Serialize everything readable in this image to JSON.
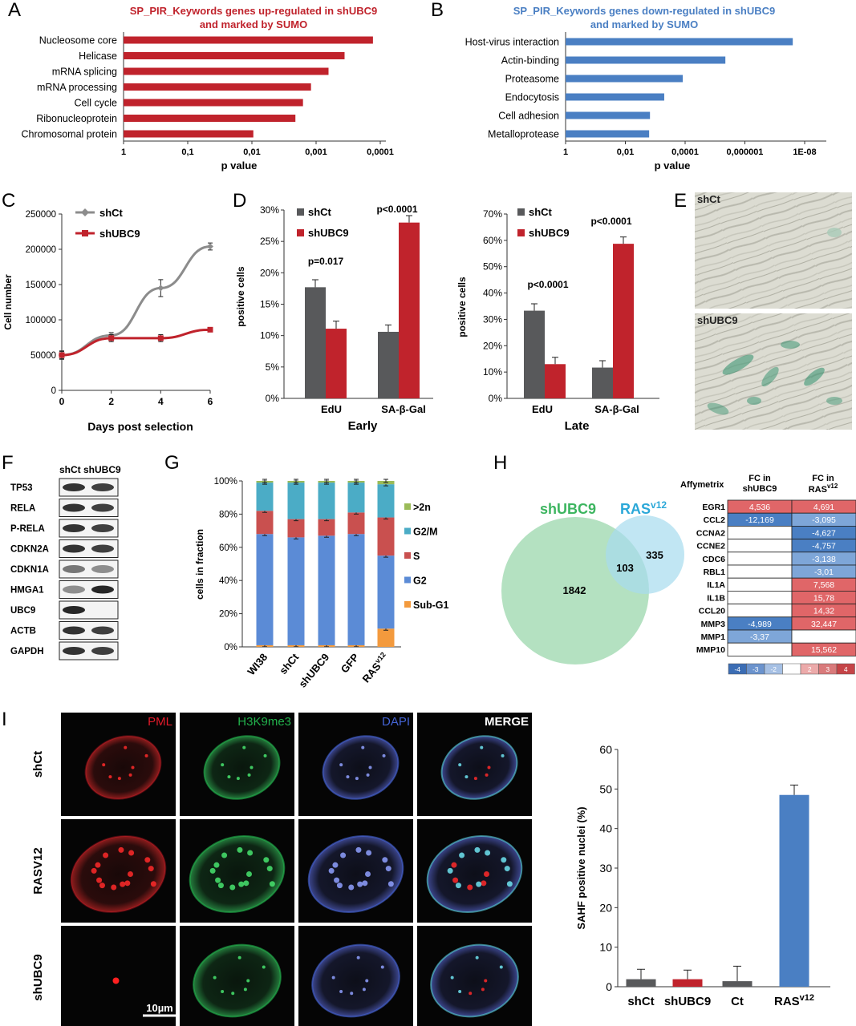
{
  "panels": {
    "A": {
      "letter": "A",
      "title_line1": "SP_PIR_Keywords genes up-regulated in shUBC9",
      "title_line2": "and marked by SUMO",
      "xlabel": "p value",
      "ticks": [
        "1",
        "0,1",
        "0,01",
        "0,001",
        "0,0001"
      ],
      "color": "#c0232c"
    },
    "B": {
      "letter": "B",
      "title_line1": "SP_PIR_Keywords genes down-regulated in shUBC9",
      "title_line2": "and marked by SUMO",
      "xlabel": "p value",
      "ticks": [
        "1",
        "0,01",
        "0,0001",
        "0,000001",
        "1E-08"
      ],
      "color": "#4a7fc3"
    },
    "C": {
      "letter": "C",
      "xlabel": "Days post selection",
      "ylabel": "Cell number",
      "yticks": [
        "0",
        "50000",
        "100000",
        "150000",
        "200000",
        "250000"
      ],
      "xticks": [
        "0",
        "2",
        "4",
        "6"
      ],
      "legend": [
        "shCt",
        "shUBC9"
      ]
    },
    "D": {
      "letter": "D",
      "ylabel": "positive cells",
      "early_label": "Early",
      "late_label": "Late",
      "early_yticks": [
        "0%",
        "5%",
        "10%",
        "15%",
        "20%",
        "25%",
        "30%"
      ],
      "late_yticks": [
        "0%",
        "10%",
        "20%",
        "30%",
        "40%",
        "50%",
        "60%",
        "70%"
      ],
      "legend": [
        "shCt",
        "shUBC9"
      ],
      "categories": [
        "EdU",
        "SA-β-Gal"
      ],
      "early_p": [
        "p=0.017",
        "p<0.0001"
      ],
      "late_p": [
        "p<0.0001",
        "p<0.0001"
      ]
    },
    "E": {
      "letter": "E",
      "top_label": "shCt",
      "bottom_label": "shUBC9"
    },
    "F": {
      "letter": "F",
      "header": "shCt shUBC9",
      "rows": [
        "TP53",
        "RELA",
        "P-RELA",
        "CDKN2A",
        "CDKN1A",
        "HMGA1",
        "UBC9",
        "ACTB",
        "GAPDH"
      ]
    },
    "G": {
      "letter": "G",
      "ylabel": "cells in fraction",
      "yticks": [
        "0%",
        "20%",
        "40%",
        "60%",
        "80%",
        "100%"
      ],
      "categories": [
        "WI38",
        "shCt",
        "shUBC9",
        "GFP",
        "RAS"
      ],
      "ras_sup": "v12",
      "legend": [
        ">2n",
        "G2/M",
        "S",
        "G2",
        "Sub-G1"
      ]
    },
    "H": {
      "letter": "H",
      "venn_a": "shUBC9",
      "venn_b": "RAS",
      "venn_b_sup": "v12",
      "n_a_only": "1842",
      "n_overlap": "103",
      "n_b_only": "335",
      "affy": "Affymetrix",
      "col1_line1": "FC in",
      "col1_line2": "shUBC9",
      "col2_line1": "FC in",
      "col2_line2": "RAS",
      "col2_sup": "v12",
      "genes": [
        "EGR1",
        "CCL2",
        "CCNA2",
        "CCNE2",
        "CDC6",
        "RBL1",
        "IL1A",
        "IL1B",
        "CCL20",
        "MMP3",
        "MMP1",
        "MMP10"
      ],
      "fc_shubc9": [
        "4,536",
        "-12,169",
        "",
        "",
        "",
        "",
        "",
        "",
        "",
        "-4,989",
        "-3,37",
        ""
      ],
      "fc_ras": [
        "4,691",
        "-3,095",
        "-4,627",
        "-4,757",
        "-3,138",
        "-3,01",
        "7,568",
        "15,78",
        "14,32",
        "32,447",
        "",
        "15,562"
      ],
      "scale": [
        "-4",
        "-3",
        "-2",
        "",
        "2",
        "3",
        "4"
      ]
    },
    "I": {
      "letter": "I",
      "col_labels": [
        "PML",
        "H3K9me3",
        "DAPI",
        "MERGE"
      ],
      "row_labels": [
        "shCt",
        "RASV12",
        "shUBC9"
      ],
      "scalebar": "10µm",
      "ylabel": "SAHF positive nuclei (%)",
      "yticks": [
        "0",
        "10",
        "20",
        "30",
        "40",
        "50",
        "60"
      ],
      "categories": [
        "shCt",
        "shUBC9",
        "Ct",
        "RAS"
      ],
      "ras_sup": "v12"
    }
  },
  "chart_data": [
    {
      "panel": "A",
      "type": "bar",
      "orientation": "horizontal",
      "title": "SP_PIR_Keywords genes up-regulated in shUBC9 and marked by SUMO",
      "xlabel": "p value",
      "xscale": "log-reversed",
      "categories": [
        "Nucleosome core",
        "Helicase",
        "mRNA splicing",
        "mRNA processing",
        "Cell cycle",
        "Ribonucleoprotein",
        "Chromosomal protein"
      ],
      "values": [
        0.00013,
        0.00036,
        0.00064,
        0.0012,
        0.0016,
        0.0021,
        0.0095
      ],
      "xlim": [
        1,
        0.0001
      ]
    },
    {
      "panel": "B",
      "type": "bar",
      "orientation": "horizontal",
      "title": "SP_PIR_Keywords genes down-regulated in shUBC9 and marked by SUMO",
      "xlabel": "p value",
      "xscale": "log-reversed",
      "categories": [
        "Host-virus interaction",
        "Actin-binding",
        "Proteasome",
        "Endocytosis",
        "Cell adhesion",
        "Metalloprotease"
      ],
      "values": [
        2.5e-08,
        4.5e-06,
        0.00012,
        0.0005,
        0.0015,
        0.0016
      ],
      "xlim": [
        1,
        1e-08
      ]
    },
    {
      "panel": "C",
      "type": "line",
      "xlabel": "Days post selection",
      "ylabel": "Cell number",
      "x": [
        0,
        2,
        4,
        6
      ],
      "series": [
        {
          "name": "shCt",
          "values": [
            50000,
            78000,
            145000,
            204000
          ],
          "errors": [
            5000,
            4000,
            12000,
            5000
          ],
          "color": "#8c8c8c"
        },
        {
          "name": "shUBC9",
          "values": [
            50000,
            74000,
            74000,
            86000
          ],
          "errors": [
            6000,
            5000,
            5000,
            3000
          ],
          "color": "#c0232c"
        }
      ],
      "ylim": [
        0,
        250000
      ],
      "xlim": [
        0,
        6
      ]
    },
    {
      "panel": "D-Early",
      "type": "bar",
      "xlabel": "Early",
      "ylabel": "positive cells",
      "categories": [
        "EdU",
        "SA-β-Gal"
      ],
      "series": [
        {
          "name": "shCt",
          "values": [
            17.7,
            10.6
          ],
          "errors": [
            1.2,
            1.1
          ],
          "color": "#58595b"
        },
        {
          "name": "shUBC9",
          "values": [
            11.1,
            28.0
          ],
          "errors": [
            1.2,
            1.1
          ],
          "color": "#c0232c"
        }
      ],
      "annotations": [
        "p=0.017",
        "p<0.0001"
      ],
      "ylim": [
        0,
        30
      ]
    },
    {
      "panel": "D-Late",
      "type": "bar",
      "xlabel": "Late",
      "ylabel": "positive cells",
      "categories": [
        "EdU",
        "SA-β-Gal"
      ],
      "series": [
        {
          "name": "shCt",
          "values": [
            33.3,
            11.7
          ],
          "errors": [
            2.6,
            2.6
          ],
          "color": "#58595b"
        },
        {
          "name": "shUBC9",
          "values": [
            13.0,
            58.7
          ],
          "errors": [
            2.6,
            2.6
          ],
          "color": "#c0232c"
        }
      ],
      "annotations": [
        "p<0.0001",
        "p<0.0001"
      ],
      "ylim": [
        0,
        70
      ]
    },
    {
      "panel": "G",
      "type": "bar",
      "stacked": true,
      "ylabel": "cells in fraction",
      "categories": [
        "WI38",
        "shCt",
        "shUBC9",
        "GFP",
        "RASv12"
      ],
      "series": [
        {
          "name": "Sub-G1",
          "values": [
            1,
            1,
            1,
            1,
            11
          ],
          "color": "#f39a3d"
        },
        {
          "name": "G2",
          "values": [
            67,
            65,
            66,
            67,
            44
          ],
          "color": "#5b8bd6"
        },
        {
          "name": "S",
          "values": [
            14,
            11,
            10,
            13,
            23
          ],
          "color": "#c9504f"
        },
        {
          "name": "G2/M",
          "values": [
            17,
            22,
            22,
            18,
            20
          ],
          "color": "#4bacc6"
        },
        {
          "name": ">2n",
          "values": [
            1,
            1,
            1,
            1,
            2
          ],
          "color": "#9bbb59"
        }
      ],
      "ylim": [
        0,
        100
      ]
    },
    {
      "panel": "H",
      "type": "table",
      "columns": [
        "Affymetrix",
        "FC in shUBC9",
        "FC in RASv12"
      ],
      "rows": [
        [
          "EGR1",
          "4,536",
          "4,691"
        ],
        [
          "CCL2",
          "-12,169",
          "-3,095"
        ],
        [
          "CCNA2",
          "",
          "-4,627"
        ],
        [
          "CCNE2",
          "",
          "-4,757"
        ],
        [
          "CDC6",
          "",
          "-3,138"
        ],
        [
          "RBL1",
          "",
          "-3,01"
        ],
        [
          "IL1A",
          "",
          "7,568"
        ],
        [
          "IL1B",
          "",
          "15,78"
        ],
        [
          "CCL20",
          "",
          "14,32"
        ],
        [
          "MMP3",
          "-4,989",
          "32,447"
        ],
        [
          "MMP1",
          "-3,37",
          ""
        ],
        [
          "MMP10",
          "",
          "15,562"
        ]
      ]
    },
    {
      "panel": "I",
      "type": "bar",
      "ylabel": "SAHF positive nuclei (%)",
      "categories": [
        "shCt",
        "shUBC9",
        "Ct",
        "RASv12"
      ],
      "values": [
        1.9,
        1.9,
        1.4,
        48.5
      ],
      "errors": [
        2.5,
        2.3,
        3.8,
        2.5
      ],
      "colors": [
        "#58595b",
        "#c0232c",
        "#58595b",
        "#4a7fc3"
      ],
      "ylim": [
        0,
        60
      ]
    }
  ]
}
